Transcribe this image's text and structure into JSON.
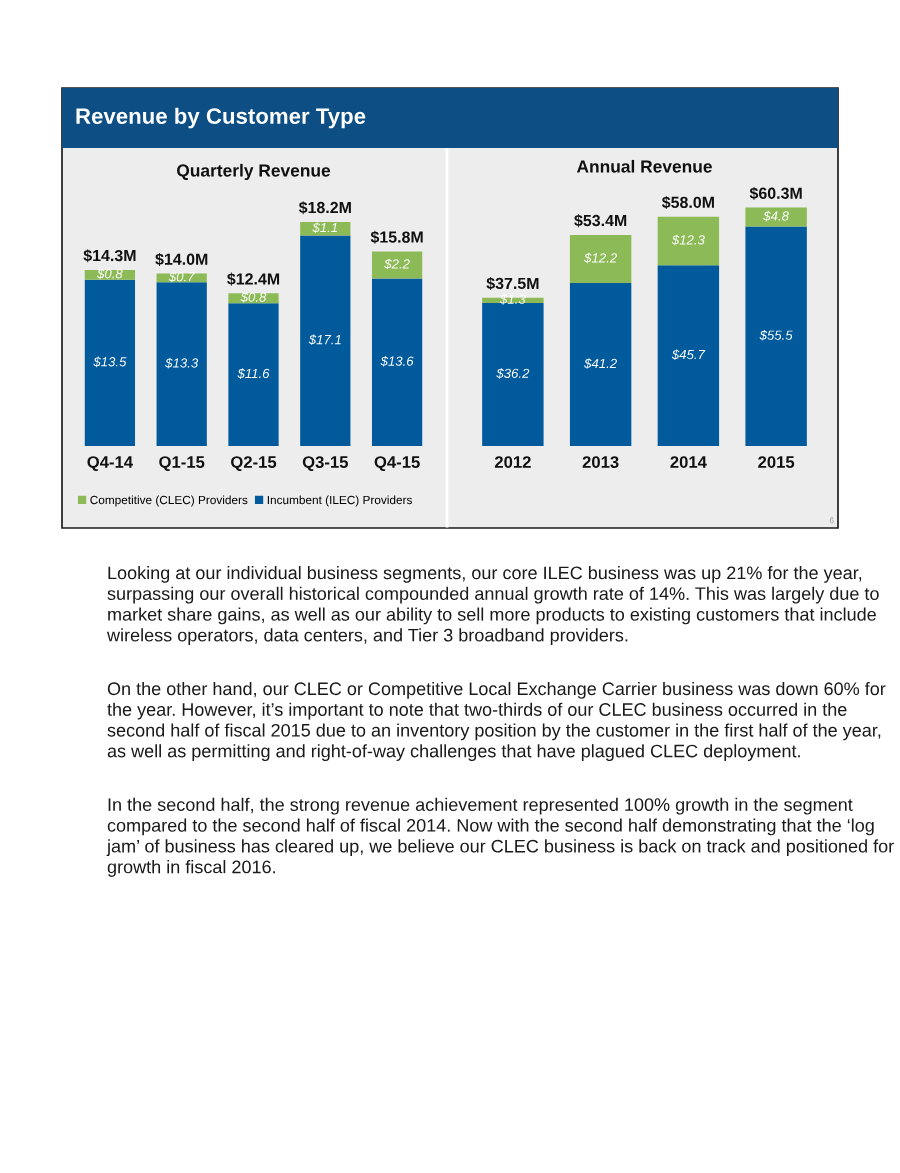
{
  "chart_data": [
    {
      "type": "bar",
      "title": "Revenue by Customer Type",
      "subtitle": "Quarterly Revenue",
      "categories": [
        "Q4-14",
        "Q1-15",
        "Q2-15",
        "Q3-15",
        "Q4-15"
      ],
      "stacked": true,
      "series": [
        {
          "name": "Incumbent (ILEC) Providers",
          "color": "#005a9c",
          "values": [
            13.5,
            13.3,
            11.6,
            17.1,
            13.6
          ],
          "value_labels": [
            "$13.5",
            "$13.3",
            "$11.6",
            "$17.1",
            "$13.6"
          ]
        },
        {
          "name": "Competitive (CLEC) Providers",
          "color": "#8cba56",
          "values": [
            0.8,
            0.7,
            0.8,
            1.1,
            2.2
          ],
          "value_labels": [
            "$0.8",
            "$0.7",
            "$0.8",
            "$1.1",
            "$2.2"
          ]
        }
      ],
      "totals": [
        "$14.3M",
        "$14.0M",
        "$12.4M",
        "$18.2M",
        "$15.8M"
      ],
      "legend": "bottom",
      "tick_labels": "x"
    },
    {
      "type": "bar",
      "subtitle": "Annual Revenue",
      "categories": [
        "2012",
        "2013",
        "2014",
        "2015"
      ],
      "stacked": true,
      "series": [
        {
          "color": "#005a9c",
          "values": [
            36.2,
            41.2,
            45.7,
            55.5
          ],
          "value_labels": [
            "$36.2",
            "$41.2",
            "$45.7",
            "$55.5"
          ]
        },
        {
          "color": "#8cba56",
          "values": [
            1.3,
            12.2,
            12.3,
            4.8
          ],
          "value_labels": [
            "$1.3",
            "$12.2",
            "$12.3",
            "$4.8"
          ]
        }
      ],
      "totals": [
        "$37.5M",
        "$53.4M",
        "$58.0M",
        "$60.3M"
      ],
      "tick_labels": "x",
      "annotations": [
        "6",
        "Looking at our individual business segments, our core ILEC business was up 21% for the year, surpassing our overall historical compounded annual growth rate of 14%. This was largely due to market share gains, as well as our ability to sell more products to existing customers that include wireless operators, data centers, and Tier 3 broadband providers.",
        "On the other hand, our CLEC or Competitive Local Exchange Carrier business was down 60% for the year. However, it’s important to note that two-thirds of our CLEC business occurred in the second half of fiscal 2015 due to an inventory position by the customer in the first half of the year, as well as permitting and right-of-way challenges that have plagued CLEC deployment.",
        "In the second half, the strong revenue achievement represented 100% growth in the segment compared to the second half of fiscal 2014. Now with the second half demonstrating that the ‘log jam’ of business has cleared up, we believe our CLEC business is back on track and positioned for growth in fiscal 2016."
      ]
    }
  ]
}
